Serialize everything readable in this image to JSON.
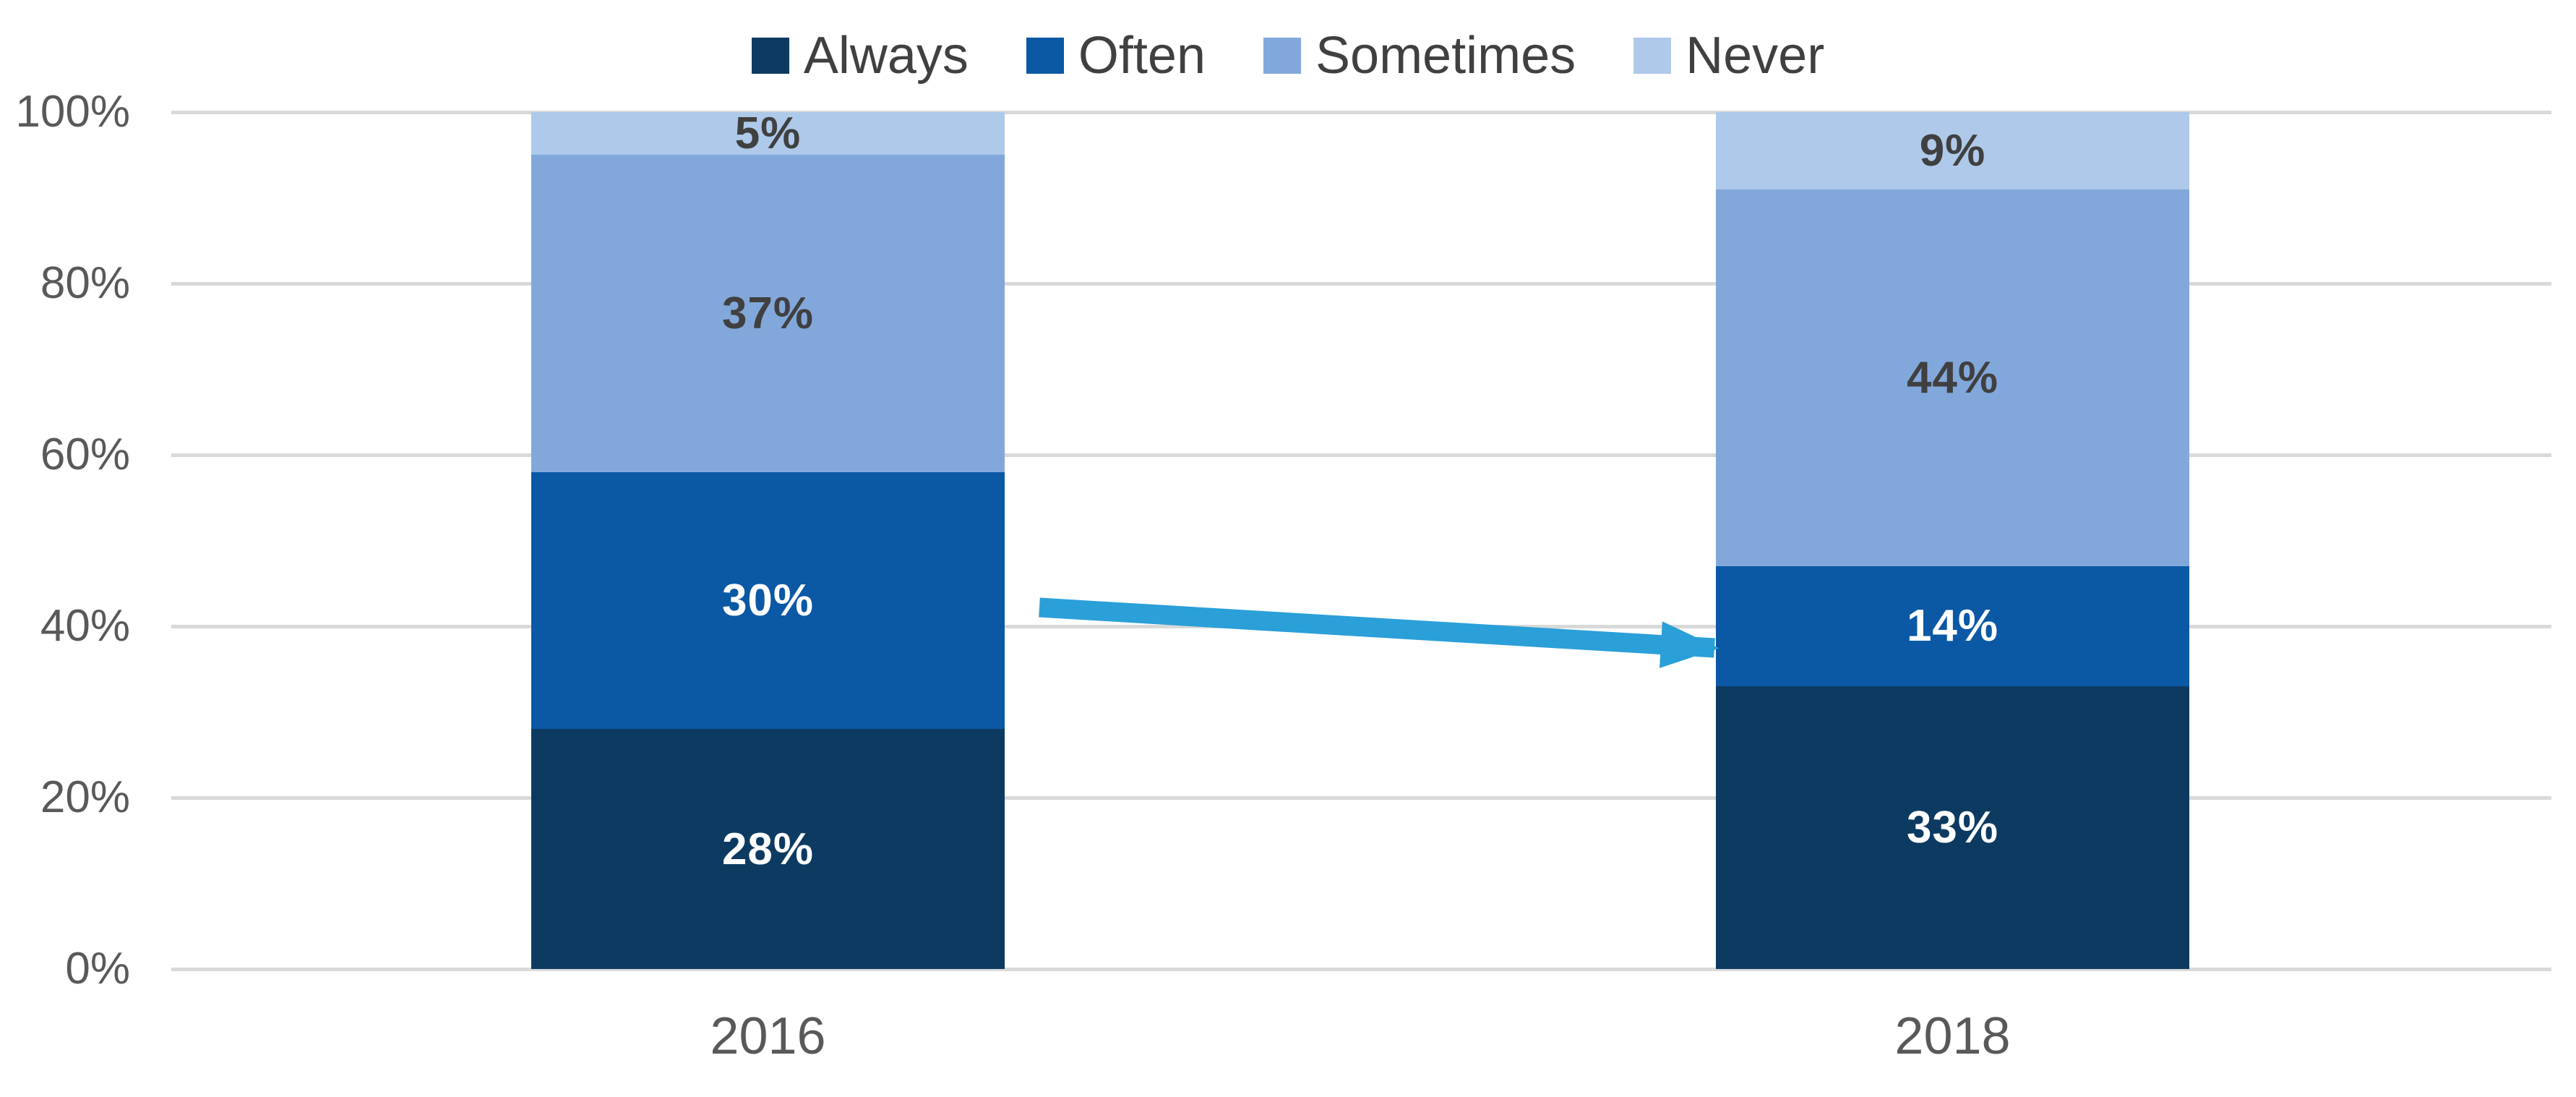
{
  "chart_data": {
    "type": "bar",
    "subtype": "stacked-100",
    "title": "",
    "categories": [
      "2016",
      "2018"
    ],
    "series": [
      {
        "name": "Always",
        "values": [
          28,
          33
        ],
        "color": "#0c3a61",
        "label_color": "#ffffff"
      },
      {
        "name": "Often",
        "values": [
          30,
          14
        ],
        "color": "#0b58a5",
        "label_color": "#ffffff"
      },
      {
        "name": "Sometimes",
        "values": [
          37,
          44
        ],
        "color": "#82a8db",
        "label_color": "#404040"
      },
      {
        "name": "Never",
        "values": [
          5,
          9
        ],
        "color": "#aec9e9",
        "label_color": "#404040"
      }
    ],
    "value_label_suffix": "%",
    "xlabel": "",
    "ylabel": "",
    "ylim": [
      0,
      100
    ],
    "y_ticks": [
      "0%",
      "20%",
      "40%",
      "60%",
      "80%",
      "100%"
    ],
    "grid": true,
    "gridline_color": "#d9d9d9",
    "legend_position": "top",
    "axis_text_color": "#595959",
    "legend_text_color": "#404040",
    "annotations": [
      {
        "type": "arrow",
        "description": "Downward trend arrow from the 2016 Often segment to the 2018 Often segment",
        "color": "#2b9fd8"
      }
    ]
  }
}
